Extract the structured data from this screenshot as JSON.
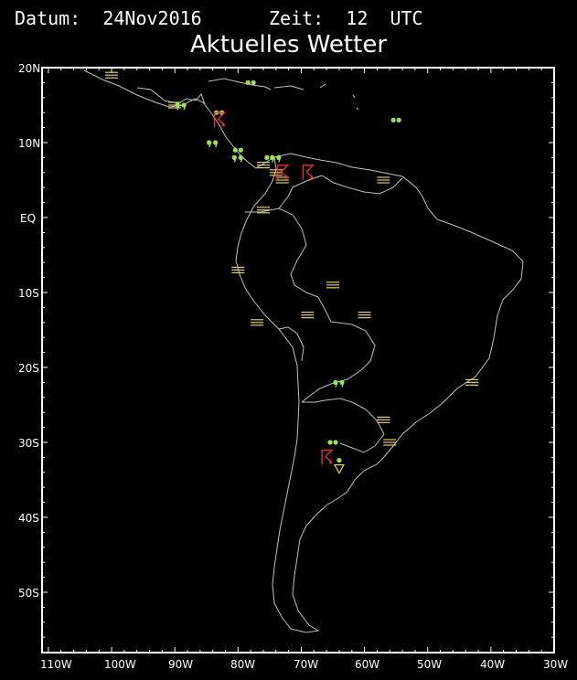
{
  "header": {
    "date_text": "Datum:  24Nov2016",
    "time_text": "Zeit:  12  UTC"
  },
  "map": {
    "title": "Aktuelles Wetter",
    "lat_labels": [
      "20N",
      "10N",
      "EQ",
      "10S",
      "20S",
      "30S",
      "40S",
      "50S"
    ],
    "lon_labels": [
      "110W",
      "100W",
      "90W",
      "80W",
      "70W",
      "60W",
      "50W",
      "40W",
      "30W"
    ],
    "colors": {
      "background": "#000000",
      "coast": "#bfbfbf",
      "mist": "#e6d34a",
      "rain": "#9ae64a",
      "thunder": "#ff2a2a",
      "frame": "#ffffff"
    },
    "symbols": {
      "mist": [
        "100W 19N",
        "90W 15N",
        "76W 7N",
        "74W 6N",
        "73W 5N",
        "57W 5N",
        "76W 1N",
        "80W 7S",
        "77W 14S",
        "69W 13S",
        "65W 9S",
        "60W 13S",
        "57W 27S",
        "56W 30S",
        "43W 22S"
      ],
      "rain_dots": [
        "78W 18N",
        "55W 13N",
        "83W 14N",
        "80W 9N",
        "75W 8N",
        "65W 30S"
      ],
      "rain_commas": [
        "89W 15N",
        "84W 10N",
        "80W 8N",
        "74W 8N",
        "64W 22S"
      ],
      "thunderstorms": [
        "83W 13N",
        "73W 6N",
        "69W 6N",
        "66W 32S"
      ],
      "showers": [
        "64W 33S"
      ]
    }
  }
}
